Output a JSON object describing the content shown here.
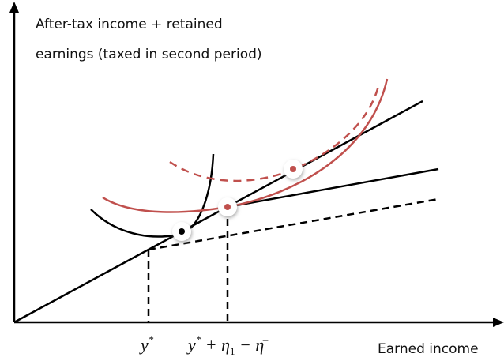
{
  "y_axis_label": {
    "lines": [
      "After-tax income + retained",
      "earnings (taxed in second period)"
    ]
  },
  "x_axis_label": "Earned income",
  "x_markers": [
    {
      "base": "y",
      "sup": "*"
    },
    {
      "base": "y",
      "sup": "*",
      "middle": " + η",
      "sub": "1",
      "tail": " − η̄"
    }
  ]
}
